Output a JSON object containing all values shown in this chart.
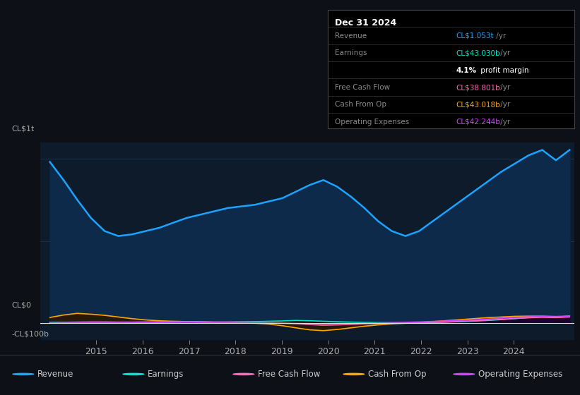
{
  "bg_color": "#0d1117",
  "plot_bg_color": "#0d1b2a",
  "grid_color": "#1e3a5f",
  "ylabel_top": "CL$1t",
  "ylabel_zero": "CL$0",
  "ylabel_bottom": "-CL$100b",
  "x_ticks": [
    2015,
    2016,
    2017,
    2018,
    2019,
    2020,
    2021,
    2022,
    2023,
    2024
  ],
  "revenue_color": "#1aa3ff",
  "revenue_fill": "#0d2a4a",
  "earnings_color": "#00e5cc",
  "fcf_color": "#ff69b4",
  "cashfromop_color": "#ffa500",
  "opex_color": "#cc44ff",
  "revenue": [
    980,
    870,
    750,
    640,
    560,
    530,
    540,
    560,
    580,
    610,
    640,
    660,
    680,
    700,
    710,
    720,
    740,
    760,
    800,
    840,
    870,
    830,
    770,
    700,
    620,
    560,
    530,
    560,
    620,
    680,
    740,
    800,
    860,
    920,
    970,
    1020,
    1053,
    990,
    1053
  ],
  "earnings": [
    5,
    6,
    7,
    8,
    8,
    7,
    7,
    8,
    9,
    10,
    10,
    9,
    8,
    8,
    9,
    10,
    12,
    14,
    17,
    15,
    12,
    9,
    7,
    5,
    4,
    3,
    2,
    3,
    5,
    7,
    10,
    13,
    17,
    22,
    28,
    35,
    40,
    38,
    43
  ],
  "fcf": [
    3,
    4,
    5,
    6,
    6,
    5,
    4,
    4,
    5,
    6,
    7,
    7,
    6,
    5,
    4,
    3,
    2,
    0,
    -3,
    -8,
    -12,
    -10,
    -7,
    -4,
    -2,
    0,
    1,
    3,
    5,
    8,
    11,
    15,
    19,
    24,
    29,
    33,
    36,
    34,
    38
  ],
  "cashfromop": [
    35,
    50,
    60,
    55,
    48,
    38,
    28,
    20,
    15,
    12,
    10,
    8,
    6,
    4,
    2,
    0,
    -5,
    -15,
    -28,
    -40,
    -45,
    -38,
    -28,
    -18,
    -10,
    -4,
    0,
    5,
    10,
    16,
    22,
    28,
    34,
    38,
    42,
    43,
    43,
    41,
    43
  ],
  "opex": [
    2,
    3,
    4,
    5,
    5,
    5,
    6,
    6,
    7,
    7,
    7,
    6,
    5,
    4,
    3,
    2,
    1,
    0,
    -1,
    -2,
    -3,
    -2,
    -1,
    0,
    2,
    4,
    6,
    8,
    11,
    14,
    17,
    21,
    26,
    31,
    36,
    39,
    41,
    39,
    42
  ],
  "info_box": {
    "date": "Dec 31 2024",
    "rows": [
      {
        "label": "Revenue",
        "value": "CL$1.053t",
        "suffix": " /yr",
        "value_color": "#1aa3ff"
      },
      {
        "label": "Earnings",
        "value": "CL$43.030b",
        "suffix": " /yr",
        "value_color": "#00e5cc"
      },
      {
        "label": "",
        "value": "4.1%",
        "suffix": " profit margin",
        "value_color": "#ffffff"
      },
      {
        "label": "Free Cash Flow",
        "value": "CL$38.801b",
        "suffix": " /yr",
        "value_color": "#ff69b4"
      },
      {
        "label": "Cash From Op",
        "value": "CL$43.018b",
        "suffix": " /yr",
        "value_color": "#ffa500"
      },
      {
        "label": "Operating Expenses",
        "value": "CL$42.244b",
        "suffix": " /yr",
        "value_color": "#cc44ff"
      }
    ]
  },
  "legend": [
    {
      "label": "Revenue",
      "color": "#1aa3ff"
    },
    {
      "label": "Earnings",
      "color": "#00e5cc"
    },
    {
      "label": "Free Cash Flow",
      "color": "#ff69b4"
    },
    {
      "label": "Cash From Op",
      "color": "#ffa500"
    },
    {
      "label": "Operating Expenses",
      "color": "#cc44ff"
    }
  ]
}
